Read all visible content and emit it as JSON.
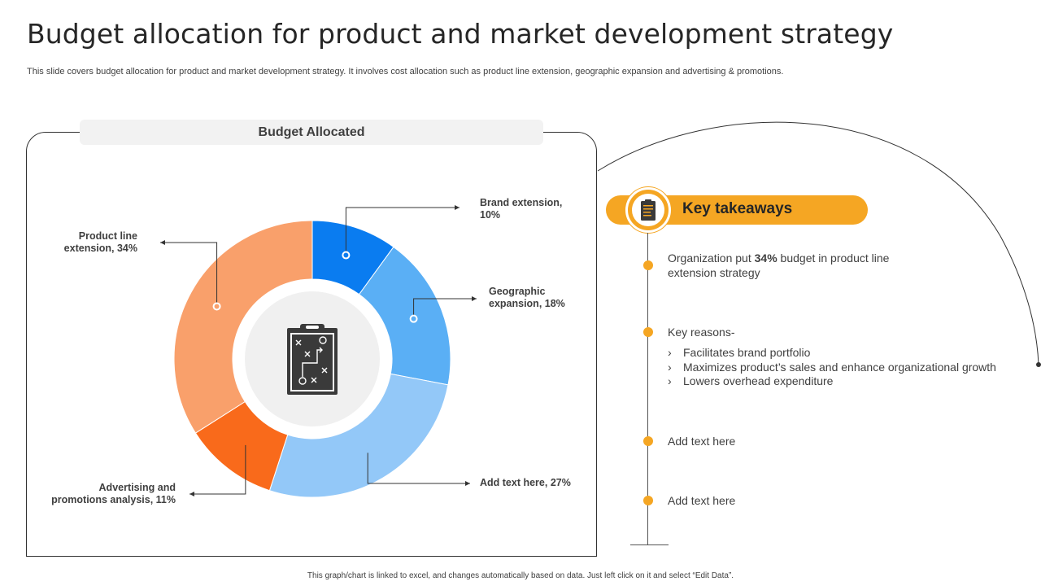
{
  "title": "Budget allocation for product and market development strategy",
  "subtitle": "This slide covers budget allocation for product and market development strategy. It involves cost allocation such as product line extension, geographic expansion and advertising & promotions.",
  "panel_header": "Budget Allocated",
  "chart_data": {
    "type": "pie",
    "variant": "donut",
    "title": "Budget Allocated",
    "categories": [
      "Brand extension",
      "Geographic expansion",
      "Add text here",
      "Advertising and promotions analysis",
      "Product line extension"
    ],
    "values": [
      10,
      18,
      27,
      11,
      34
    ],
    "unit": "%",
    "colors": [
      "#0a7cf0",
      "#5aaff5",
      "#93c8f8",
      "#f96a1b",
      "#f9a06b"
    ],
    "labels": [
      {
        "line1": "Brand extension,",
        "line2": "10%"
      },
      {
        "line1": "Geographic",
        "line2": "expansion, 18%"
      },
      {
        "line1": "Add text here, 27%",
        "line2": ""
      },
      {
        "line1": "Advertising and",
        "line2": "promotions analysis, 11%"
      },
      {
        "line1": "Product line",
        "line2": "extension, 34%"
      }
    ]
  },
  "center_icon": "strategy-clipboard-icon",
  "key_takeaways": {
    "title": "Key takeaways",
    "icon": "clipboard-icon",
    "accent": "#f5a623",
    "item1": {
      "before": "Organization put ",
      "bold": "34%",
      "after": " budget in product line extension strategy"
    },
    "item2": {
      "heading": "Key reasons-",
      "bullet_glyph": "›",
      "bullets": [
        "Facilitates brand portfolio",
        "Maximizes product’s sales and enhance organizational growth",
        "Lowers overhead expenditure"
      ]
    },
    "item3": "Add text here",
    "item4": "Add text here"
  },
  "footer": "This graph/chart is linked to excel, and changes automatically based on data. Just left click on it and select “Edit Data”."
}
